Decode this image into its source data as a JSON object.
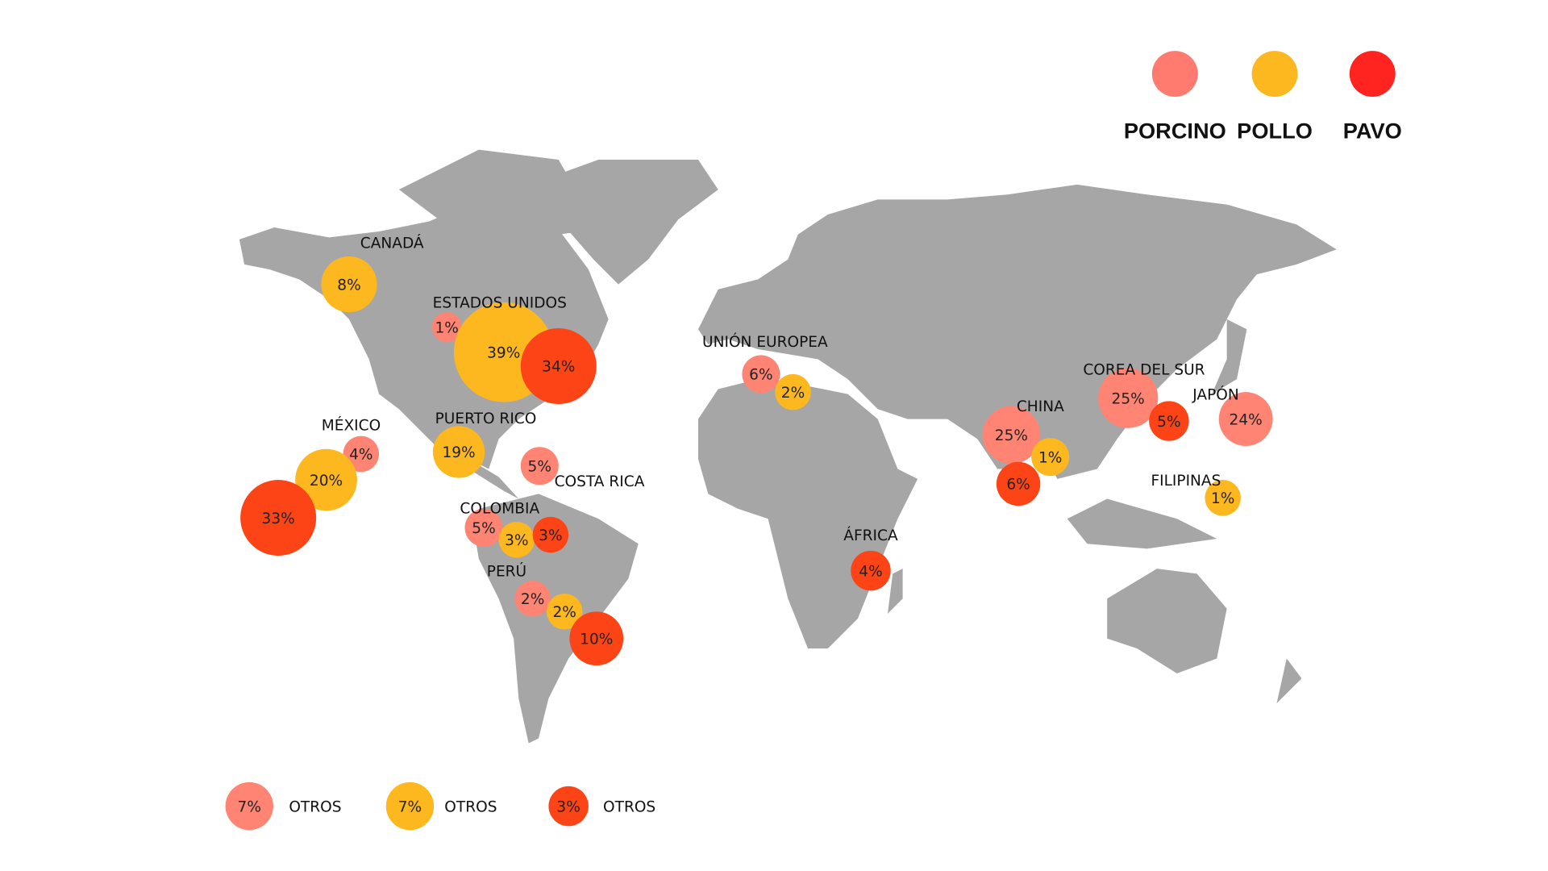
{
  "legend": [
    {
      "name": "PORCINO",
      "color": "#ff7b70",
      "bubble_color": "#ff8474"
    },
    {
      "name": "POLLO",
      "color": "#fdb71f",
      "bubble_color": "#fdb71f"
    },
    {
      "name": "PAVO",
      "color": "#ff2420",
      "bubble_color": "#fc4416"
    }
  ],
  "regions": [
    {
      "name": "CANADÁ",
      "bubbles": [
        {
          "series": 1,
          "value": 8,
          "value_label": "8%"
        }
      ]
    },
    {
      "name": "ESTADOS UNIDOS",
      "bubbles": [
        {
          "series": 0,
          "value": 1,
          "value_label": "1%"
        },
        {
          "series": 1,
          "value": 39,
          "value_label": "39%"
        },
        {
          "series": 2,
          "value": 34,
          "value_label": "34%"
        }
      ]
    },
    {
      "name": "MÉXICO",
      "bubbles": [
        {
          "series": 0,
          "value": 4,
          "value_label": "4%"
        },
        {
          "series": 1,
          "value": 20,
          "value_label": "20%"
        },
        {
          "series": 2,
          "value": 33,
          "value_label": "33%"
        }
      ]
    },
    {
      "name": "PUERTO RICO",
      "bubbles": [
        {
          "series": 1,
          "value": 19,
          "value_label": "19%"
        }
      ]
    },
    {
      "name": "COSTA RICA",
      "bubbles": [
        {
          "series": 0,
          "value": 5,
          "value_label": "5%"
        }
      ]
    },
    {
      "name": "COLOMBIA",
      "bubbles": [
        {
          "series": 0,
          "value": 5,
          "value_label": "5%"
        },
        {
          "series": 1,
          "value": 3,
          "value_label": "3%"
        },
        {
          "series": 2,
          "value": 3,
          "value_label": "3%"
        }
      ]
    },
    {
      "name": "PERÚ",
      "bubbles": [
        {
          "series": 0,
          "value": 2,
          "value_label": "2%"
        },
        {
          "series": 1,
          "value": 2,
          "value_label": "2%"
        },
        {
          "series": 2,
          "value": 10,
          "value_label": "10%"
        }
      ]
    },
    {
      "name": "UNIÓN EUROPEA",
      "bubbles": [
        {
          "series": 0,
          "value": 6,
          "value_label": "6%"
        },
        {
          "series": 1,
          "value": 2,
          "value_label": "2%"
        }
      ]
    },
    {
      "name": "ÁFRICA",
      "bubbles": [
        {
          "series": 2,
          "value": 4,
          "value_label": "4%"
        }
      ]
    },
    {
      "name": "CHINA",
      "bubbles": [
        {
          "series": 0,
          "value": 25,
          "value_label": "25%"
        },
        {
          "series": 1,
          "value": 1,
          "value_label": "1%"
        },
        {
          "series": 2,
          "value": 6,
          "value_label": "6%"
        }
      ]
    },
    {
      "name": "COREA DEL SUR",
      "bubbles": [
        {
          "series": 0,
          "value": 25,
          "value_label": "25%"
        },
        {
          "series": 2,
          "value": 5,
          "value_label": "5%"
        }
      ]
    },
    {
      "name": "JAPÓN",
      "bubbles": [
        {
          "series": 0,
          "value": 24,
          "value_label": "24%"
        }
      ]
    },
    {
      "name": "FILIPINAS",
      "bubbles": [
        {
          "series": 1,
          "value": 1,
          "value_label": "1%"
        }
      ]
    }
  ],
  "others": [
    {
      "series": 0,
      "name": "OTROS",
      "value": 7,
      "value_label": "7%"
    },
    {
      "series": 1,
      "name": "OTROS",
      "value": 7,
      "value_label": "7%"
    },
    {
      "series": 2,
      "name": "OTROS",
      "value": 3,
      "value_label": "3%"
    }
  ]
}
